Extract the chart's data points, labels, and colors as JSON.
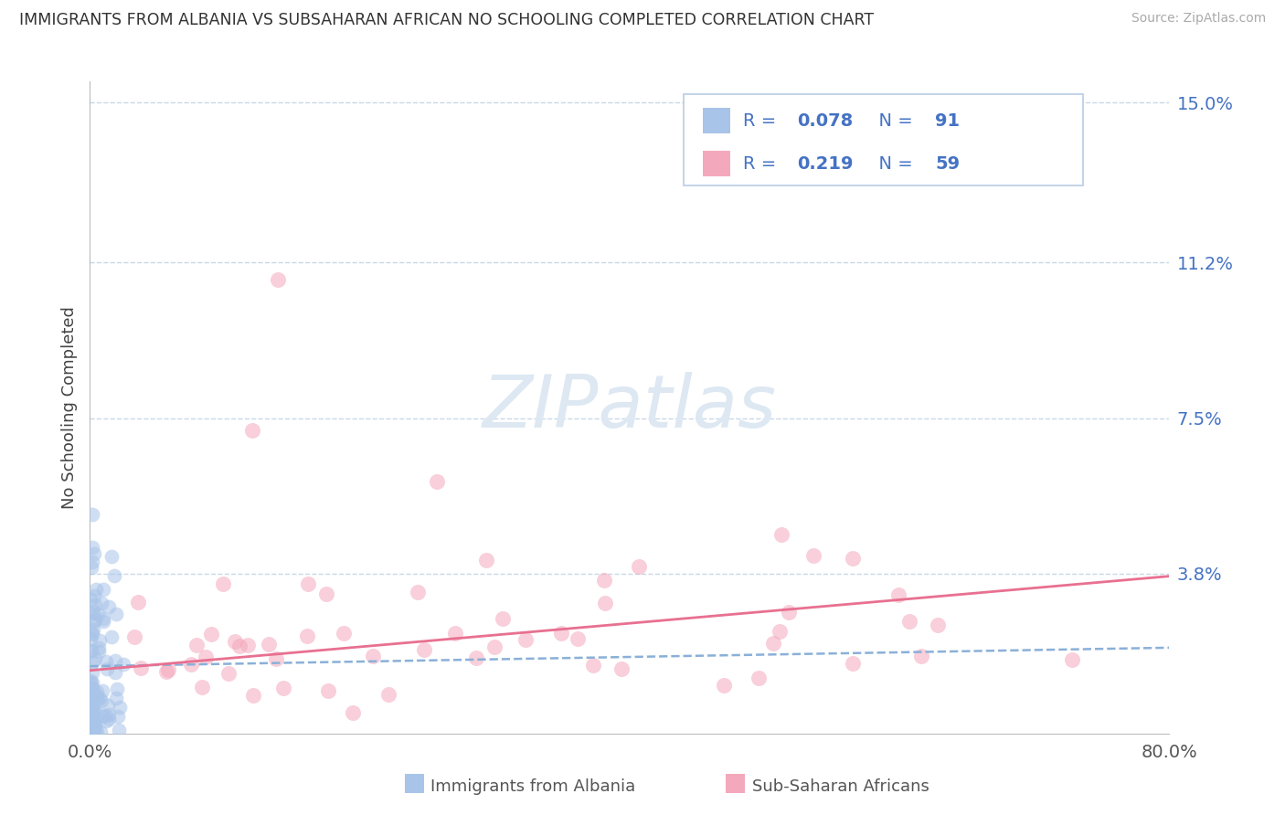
{
  "title": "IMMIGRANTS FROM ALBANIA VS SUBSAHARAN AFRICAN NO SCHOOLING COMPLETED CORRELATION CHART",
  "source": "Source: ZipAtlas.com",
  "ylabel": "No Schooling Completed",
  "albania_label": "Immigrants from Albania",
  "subsaharan_label": "Sub-Saharan Africans",
  "xlim": [
    0.0,
    0.8
  ],
  "ylim": [
    0.0,
    0.155
  ],
  "ytick_positions": [
    0.038,
    0.075,
    0.112,
    0.15
  ],
  "ytick_labels": [
    "3.8%",
    "7.5%",
    "11.2%",
    "15.0%"
  ],
  "albania_R": 0.078,
  "albania_N": 91,
  "subsaharan_R": 0.219,
  "subsaharan_N": 59,
  "albania_color": "#a8c4e8",
  "subsaharan_color": "#f4a8bc",
  "albania_line_color": "#8ab0d8",
  "subsaharan_line_color": "#e87090",
  "grid_color": "#c8d8e8",
  "title_color": "#333333",
  "source_color": "#aaaaaa",
  "label_color_blue": "#4472c4",
  "watermark_color": "#dde8f2"
}
